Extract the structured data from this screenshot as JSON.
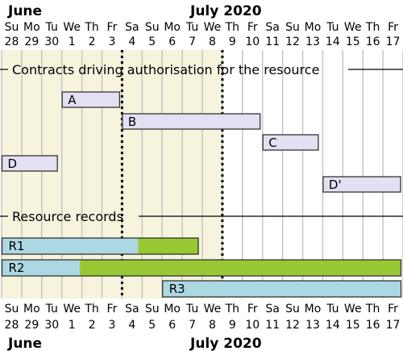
{
  "months": [
    {
      "name": "June",
      "start_day": 0
    },
    {
      "name": "July 2020",
      "start_day": 3
    }
  ],
  "days": [
    {
      "dow": "Su",
      "dom": "28"
    },
    {
      "dow": "Mo",
      "dom": "29"
    },
    {
      "dow": "Tu",
      "dom": "30"
    },
    {
      "dow": "We",
      "dom": "1"
    },
    {
      "dow": "Th",
      "dom": "2"
    },
    {
      "dow": "Fr",
      "dom": "3"
    },
    {
      "dow": "Sa",
      "dom": "4"
    },
    {
      "dow": "Su",
      "dom": "5"
    },
    {
      "dow": "Mo",
      "dom": "6"
    },
    {
      "dow": "Tu",
      "dom": "7"
    },
    {
      "dow": "We",
      "dom": "8"
    },
    {
      "dow": "Th",
      "dom": "9"
    },
    {
      "dow": "Fr",
      "dom": "10"
    },
    {
      "dow": "Sa",
      "dom": "11"
    },
    {
      "dow": "Su",
      "dom": "12"
    },
    {
      "dow": "Mo",
      "dom": "13"
    },
    {
      "dow": "Tu",
      "dom": "14"
    },
    {
      "dow": "We",
      "dom": "15"
    },
    {
      "dow": "Th",
      "dom": "16"
    },
    {
      "dow": "Fr",
      "dom": "17"
    }
  ],
  "shaded_until_day": 11,
  "markers_days": [
    6,
    11
  ],
  "sections": [
    {
      "title": "Contracts driving authorisation for the resource"
    },
    {
      "title": "Resource records"
    }
  ],
  "contracts": [
    {
      "label": "A",
      "start": 3,
      "end": 5.9
    },
    {
      "label": "B",
      "start": 6,
      "end": 12.9
    },
    {
      "label": "C",
      "start": 13,
      "end": 15.8
    },
    {
      "label": "D",
      "start": 0,
      "end": 2.8
    },
    {
      "label": "D'",
      "start": 16,
      "end": 19.9
    }
  ],
  "records": [
    {
      "label": "R1",
      "start": 0,
      "split": 6.8,
      "end": 9.8
    },
    {
      "label": "R2",
      "start": 0,
      "split": 3.9,
      "end": 19.9
    },
    {
      "label": "R3",
      "start": 8,
      "split": 19.9,
      "end": 19.9
    }
  ],
  "colors": {
    "shade": "#f6f4dc",
    "grid": "#c8c8c8",
    "contract_fill": "#e2e0f2",
    "record_blue": "#acd8e4",
    "record_green": "#98c834",
    "border": "#333333"
  }
}
